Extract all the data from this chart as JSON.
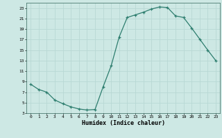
{
  "x": [
    0,
    1,
    2,
    3,
    4,
    5,
    6,
    7,
    8,
    9,
    10,
    11,
    12,
    13,
    14,
    15,
    16,
    17,
    18,
    19,
    20,
    21,
    22,
    23
  ],
  "y": [
    8.5,
    7.5,
    7.0,
    5.5,
    4.8,
    4.2,
    3.8,
    3.6,
    3.7,
    8.0,
    12.0,
    17.5,
    21.2,
    21.7,
    22.2,
    22.8,
    23.2,
    23.1,
    21.5,
    21.2,
    19.2,
    17.1,
    15.0,
    13.0
  ],
  "xlabel": "Humidex (Indice chaleur)",
  "line_color": "#2d7d6e",
  "marker": "+",
  "bg_color": "#cde8e4",
  "grid_color": "#b8d8d4",
  "ylim": [
    3,
    24
  ],
  "xlim": [
    -0.5,
    23.5
  ],
  "yticks": [
    3,
    5,
    7,
    9,
    11,
    13,
    15,
    17,
    19,
    21,
    23
  ],
  "xticks": [
    0,
    1,
    2,
    3,
    4,
    5,
    6,
    7,
    8,
    9,
    10,
    11,
    12,
    13,
    14,
    15,
    16,
    17,
    18,
    19,
    20,
    21,
    22,
    23
  ]
}
